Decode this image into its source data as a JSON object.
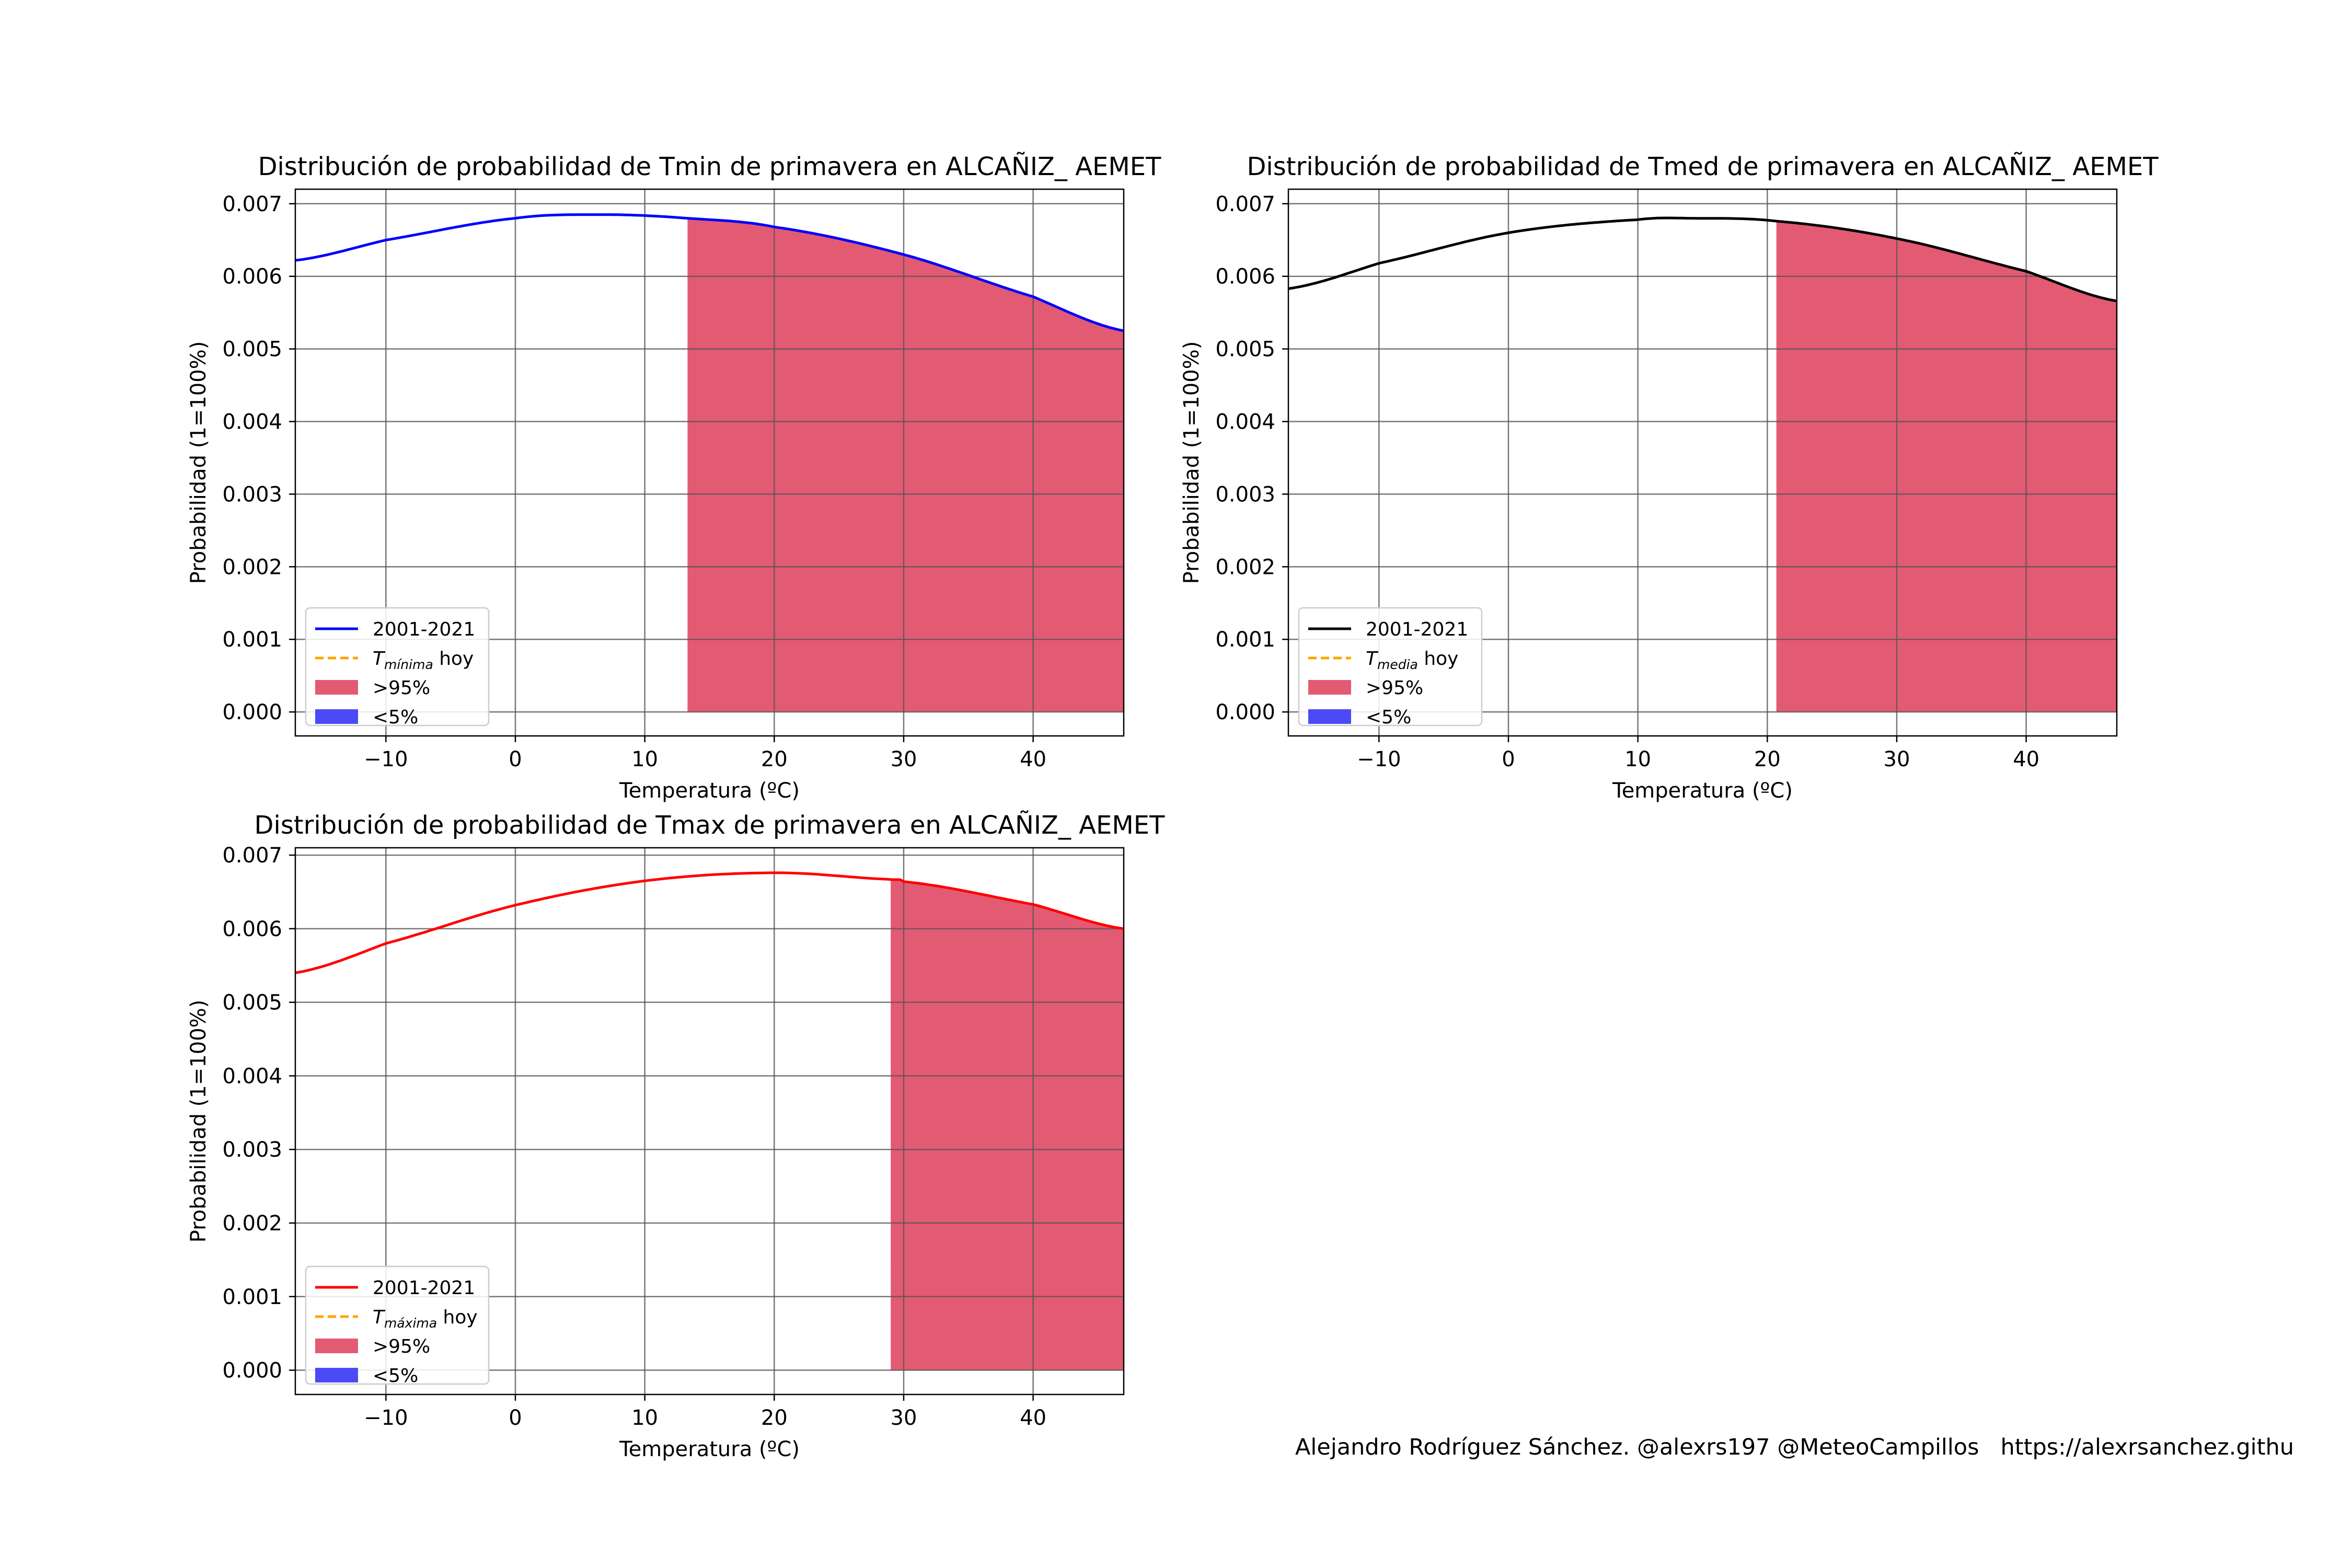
{
  "credit": "Alejandro Rodríguez Sánchez. @alexrs197 @MeteoCampillos   https://alexrsanchez.githu",
  "colors": {
    "fill_high": "#e35a73",
    "fill_low": "#4b4bf5",
    "today_line": "#ffa500",
    "grid": "#555555"
  },
  "chart_data": [
    {
      "type": "line",
      "title": "Distribución de probabilidad de Tmin de primavera en ALCAÑIZ_ AEMET",
      "xlabel": "Temperatura (ºC)",
      "ylabel": "Probabilidad (1=100%)",
      "xlim": [
        -17,
        47
      ],
      "ylim": [
        -0.00033,
        0.0072
      ],
      "xticks": [
        -10,
        0,
        10,
        20,
        30,
        40
      ],
      "xtick_labels": [
        "−10",
        "0",
        "10",
        "20",
        "30",
        "40"
      ],
      "yticks": [
        0,
        0.001,
        0.002,
        0.003,
        0.004,
        0.005,
        0.006,
        0.007
      ],
      "ytick_labels": [
        "0.000",
        "0.001",
        "0.002",
        "0.003",
        "0.004",
        "0.005",
        "0.006",
        "0.007"
      ],
      "grid": true,
      "line_color": "#0000ff",
      "series": [
        {
          "name": "2001-2021",
          "x": [
            -17,
            -10,
            0,
            7,
            13.3,
            20,
            30,
            40,
            47
          ],
          "y": [
            0.00622,
            0.0065,
            0.0068,
            0.00685,
            0.0068,
            0.00668,
            0.0063,
            0.00572,
            0.00525
          ]
        }
      ],
      "fill_above_95": {
        "name": ">95%",
        "from_x": 13.3,
        "to_x": 47
      },
      "legend": {
        "location": "lower-left",
        "entries": [
          {
            "label": "2001-2021",
            "kind": "line"
          },
          {
            "label_symbol": "T",
            "label_sub": "mínima",
            "label_rest": " hoy",
            "kind": "dashed"
          },
          {
            "label": ">95%",
            "kind": "fill-high"
          },
          {
            "label": "<5%",
            "kind": "fill-low"
          }
        ]
      }
    },
    {
      "type": "line",
      "title": "Distribución de probabilidad de Tmed de primavera en ALCAÑIZ_ AEMET",
      "xlabel": "Temperatura (ºC)",
      "ylabel": "Probabilidad (1=100%)",
      "xlim": [
        -17,
        47
      ],
      "ylim": [
        -0.00033,
        0.0072
      ],
      "xticks": [
        -10,
        0,
        10,
        20,
        30,
        40
      ],
      "xtick_labels": [
        "−10",
        "0",
        "10",
        "20",
        "30",
        "40"
      ],
      "yticks": [
        0,
        0.001,
        0.002,
        0.003,
        0.004,
        0.005,
        0.006,
        0.007
      ],
      "ytick_labels": [
        "0.000",
        "0.001",
        "0.002",
        "0.003",
        "0.004",
        "0.005",
        "0.006",
        "0.007"
      ],
      "grid": true,
      "line_color": "#000000",
      "series": [
        {
          "name": "2001-2021",
          "x": [
            -17,
            -10,
            0,
            10,
            14,
            20.7,
            30,
            40,
            47
          ],
          "y": [
            0.00583,
            0.00618,
            0.0066,
            0.00678,
            0.0068,
            0.00676,
            0.00652,
            0.00607,
            0.00566
          ]
        }
      ],
      "fill_above_95": {
        "name": ">95%",
        "from_x": 20.7,
        "to_x": 47
      },
      "legend": {
        "location": "lower-left",
        "entries": [
          {
            "label": "2001-2021",
            "kind": "line"
          },
          {
            "label_symbol": "T",
            "label_sub": "media",
            "label_rest": " hoy",
            "kind": "dashed"
          },
          {
            "label": ">95%",
            "kind": "fill-high"
          },
          {
            "label": "<5%",
            "kind": "fill-low"
          }
        ]
      }
    },
    {
      "type": "line",
      "title": "Distribución de probabilidad de Tmax de primavera en ALCAÑIZ_ AEMET",
      "xlabel": "Temperatura (ºC)",
      "ylabel": "Probabilidad (1=100%)",
      "xlim": [
        -17,
        47
      ],
      "ylim": [
        -0.00033,
        0.0071
      ],
      "xticks": [
        -10,
        0,
        10,
        20,
        30,
        40
      ],
      "xtick_labels": [
        "−10",
        "0",
        "10",
        "20",
        "30",
        "40"
      ],
      "yticks": [
        0,
        0.001,
        0.002,
        0.003,
        0.004,
        0.005,
        0.006,
        0.007
      ],
      "ytick_labels": [
        "0.000",
        "0.001",
        "0.002",
        "0.003",
        "0.004",
        "0.005",
        "0.006",
        "0.007"
      ],
      "grid": true,
      "line_color": "#ff0000",
      "series": [
        {
          "name": "2001-2021",
          "x": [
            -17,
            -10,
            0,
            10,
            20,
            29,
            30,
            40,
            47
          ],
          "y": [
            0.0054,
            0.0058,
            0.00632,
            0.00665,
            0.00676,
            0.00667,
            0.00664,
            0.00633,
            0.006
          ]
        }
      ],
      "fill_above_95": {
        "name": ">95%",
        "from_x": 29,
        "to_x": 47
      },
      "legend": {
        "location": "lower-left",
        "entries": [
          {
            "label": "2001-2021",
            "kind": "line"
          },
          {
            "label_symbol": "T",
            "label_sub": "máxima",
            "label_rest": " hoy",
            "kind": "dashed"
          },
          {
            "label": ">95%",
            "kind": "fill-high"
          },
          {
            "label": "<5%",
            "kind": "fill-low"
          }
        ]
      }
    }
  ]
}
